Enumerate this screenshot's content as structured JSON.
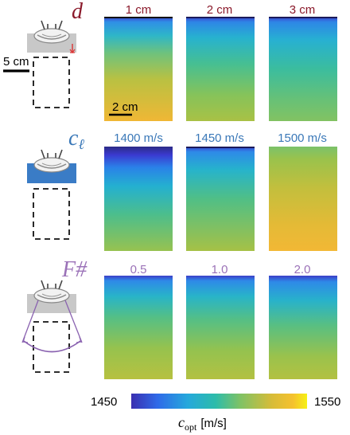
{
  "rows": [
    {
      "symbol": "d",
      "symbol_color": "#8b1a2b",
      "labels": [
        "1 cm",
        "2 cm",
        "3 cm"
      ],
      "label_color": "#8b1a2b",
      "side_scale_text": "5 cm",
      "inset_scale_text": "2 cm"
    },
    {
      "symbol": "c",
      "symbol_subscript": "ℓ",
      "symbol_color": "#3a78b8",
      "labels": [
        "1400 m/s",
        "1450 m/s",
        "1500 m/s"
      ],
      "label_color": "#3a78b8"
    },
    {
      "symbol": "F#",
      "symbol_color": "#9b72b8",
      "labels": [
        "0.5",
        "1.0",
        "2.0"
      ],
      "label_color": "#9b72b8"
    }
  ],
  "colorbar": {
    "min_label": "1450",
    "max_label": "1550",
    "axis_label_symbol": "c",
    "axis_label_subscript": "opt",
    "axis_label_unit": "[m/s]"
  }
}
